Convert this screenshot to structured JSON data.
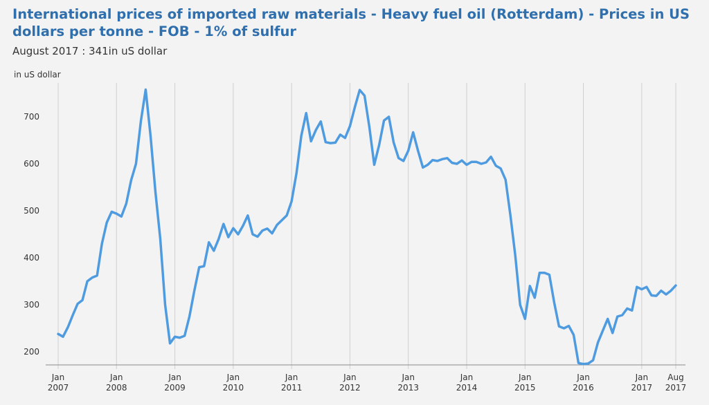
{
  "header": {
    "title": "International prices of imported raw materials - Heavy fuel oil (Rotterdam) - Prices in US dollars per tonne - FOB - 1% of sulfur",
    "subtitle": "August 2017 : 341in uS dollar",
    "unit_label": "in uS dollar"
  },
  "colors": {
    "line": "#4f9be0",
    "grid": "#cfcfcf",
    "title": "#2f6fad"
  },
  "chart_data": {
    "type": "line",
    "title": "International prices of imported raw materials - Heavy fuel oil (Rotterdam) - Prices in US dollars per tonne - FOB - 1% of sulfur",
    "ylabel": "in uS dollar",
    "xlabel": "",
    "ylim": [
      180,
      780
    ],
    "xlim": [
      "2007-01",
      "2017-08"
    ],
    "grid": "vertical",
    "y_ticks": [
      200,
      300,
      400,
      500,
      600,
      700
    ],
    "x_ticks": [
      {
        "date": "2007-01",
        "line1": "Jan",
        "line2": "2007"
      },
      {
        "date": "2008-01",
        "line1": "Jan",
        "line2": "2008"
      },
      {
        "date": "2009-01",
        "line1": "Jan",
        "line2": "2009"
      },
      {
        "date": "2010-01",
        "line1": "Jan",
        "line2": "2010"
      },
      {
        "date": "2011-01",
        "line1": "Jan",
        "line2": "2011"
      },
      {
        "date": "2012-01",
        "line1": "Jan",
        "line2": "2012"
      },
      {
        "date": "2013-01",
        "line1": "Jan",
        "line2": "2013"
      },
      {
        "date": "2014-01",
        "line1": "Jan",
        "line2": "2014"
      },
      {
        "date": "2015-01",
        "line1": "Jan",
        "line2": "2015"
      },
      {
        "date": "2016-01",
        "line1": "Jan",
        "line2": "2016"
      },
      {
        "date": "2017-01",
        "line1": "Jan",
        "line2": "2017"
      },
      {
        "date": "2017-08",
        "line1": "Aug",
        "line2": "2017"
      }
    ],
    "series": [
      {
        "points": [
          [
            "2007-01",
            238
          ],
          [
            "2007-02",
            232
          ],
          [
            "2007-03",
            252
          ],
          [
            "2007-04",
            278
          ],
          [
            "2007-05",
            302
          ],
          [
            "2007-06",
            310
          ],
          [
            "2007-07",
            350
          ],
          [
            "2007-08",
            358
          ],
          [
            "2007-09",
            362
          ],
          [
            "2007-10",
            430
          ],
          [
            "2007-11",
            475
          ],
          [
            "2007-12",
            498
          ],
          [
            "2008-01",
            494
          ],
          [
            "2008-02",
            488
          ],
          [
            "2008-03",
            515
          ],
          [
            "2008-04",
            565
          ],
          [
            "2008-05",
            600
          ],
          [
            "2008-06",
            690
          ],
          [
            "2008-07",
            758
          ],
          [
            "2008-08",
            660
          ],
          [
            "2008-09",
            540
          ],
          [
            "2008-10",
            440
          ],
          [
            "2008-11",
            300
          ],
          [
            "2008-12",
            218
          ],
          [
            "2009-01",
            232
          ],
          [
            "2009-02",
            230
          ],
          [
            "2009-03",
            234
          ],
          [
            "2009-04",
            275
          ],
          [
            "2009-05",
            330
          ],
          [
            "2009-06",
            380
          ],
          [
            "2009-07",
            382
          ],
          [
            "2009-08",
            433
          ],
          [
            "2009-09",
            415
          ],
          [
            "2009-10",
            440
          ],
          [
            "2009-11",
            472
          ],
          [
            "2009-12",
            444
          ],
          [
            "2010-01",
            463
          ],
          [
            "2010-02",
            450
          ],
          [
            "2010-03",
            468
          ],
          [
            "2010-04",
            490
          ],
          [
            "2010-05",
            450
          ],
          [
            "2010-06",
            445
          ],
          [
            "2010-07",
            458
          ],
          [
            "2010-08",
            462
          ],
          [
            "2010-09",
            452
          ],
          [
            "2010-10",
            470
          ],
          [
            "2010-11",
            480
          ],
          [
            "2010-12",
            490
          ],
          [
            "2011-01",
            520
          ],
          [
            "2011-02",
            580
          ],
          [
            "2011-03",
            660
          ],
          [
            "2011-04",
            708
          ],
          [
            "2011-05",
            648
          ],
          [
            "2011-06",
            672
          ],
          [
            "2011-07",
            690
          ],
          [
            "2011-08",
            646
          ],
          [
            "2011-09",
            644
          ],
          [
            "2011-10",
            645
          ],
          [
            "2011-11",
            662
          ],
          [
            "2011-12",
            655
          ],
          [
            "2012-01",
            680
          ],
          [
            "2012-02",
            720
          ],
          [
            "2012-03",
            757
          ],
          [
            "2012-04",
            745
          ],
          [
            "2012-05",
            678
          ],
          [
            "2012-06",
            598
          ],
          [
            "2012-07",
            640
          ],
          [
            "2012-08",
            692
          ],
          [
            "2012-09",
            700
          ],
          [
            "2012-10",
            645
          ],
          [
            "2012-11",
            612
          ],
          [
            "2012-12",
            606
          ],
          [
            "2013-01",
            628
          ],
          [
            "2013-02",
            667
          ],
          [
            "2013-03",
            628
          ],
          [
            "2013-04",
            592
          ],
          [
            "2013-05",
            598
          ],
          [
            "2013-06",
            608
          ],
          [
            "2013-07",
            606
          ],
          [
            "2013-08",
            610
          ],
          [
            "2013-09",
            612
          ],
          [
            "2013-10",
            602
          ],
          [
            "2013-11",
            600
          ],
          [
            "2013-12",
            607
          ],
          [
            "2014-01",
            598
          ],
          [
            "2014-02",
            604
          ],
          [
            "2014-03",
            604
          ],
          [
            "2014-04",
            600
          ],
          [
            "2014-05",
            603
          ],
          [
            "2014-06",
            615
          ],
          [
            "2014-07",
            596
          ],
          [
            "2014-08",
            590
          ],
          [
            "2014-09",
            566
          ],
          [
            "2014-10",
            490
          ],
          [
            "2014-11",
            405
          ],
          [
            "2014-12",
            300
          ],
          [
            "2015-01",
            270
          ],
          [
            "2015-02",
            340
          ],
          [
            "2015-03",
            315
          ],
          [
            "2015-04",
            368
          ],
          [
            "2015-05",
            368
          ],
          [
            "2015-06",
            364
          ],
          [
            "2015-07",
            305
          ],
          [
            "2015-08",
            254
          ],
          [
            "2015-09",
            250
          ],
          [
            "2015-10",
            255
          ],
          [
            "2015-11",
            236
          ],
          [
            "2015-12",
            176
          ],
          [
            "2016-01",
            174
          ],
          [
            "2016-02",
            175
          ],
          [
            "2016-03",
            182
          ],
          [
            "2016-04",
            220
          ],
          [
            "2016-05",
            245
          ],
          [
            "2016-06",
            270
          ],
          [
            "2016-07",
            240
          ],
          [
            "2016-08",
            275
          ],
          [
            "2016-09",
            278
          ],
          [
            "2016-10",
            292
          ],
          [
            "2016-11",
            288
          ],
          [
            "2016-12",
            338
          ],
          [
            "2017-01",
            333
          ],
          [
            "2017-02",
            338
          ],
          [
            "2017-03",
            320
          ],
          [
            "2017-04",
            319
          ],
          [
            "2017-05",
            330
          ],
          [
            "2017-06",
            322
          ],
          [
            "2017-07",
            330
          ],
          [
            "2017-08",
            341
          ]
        ]
      }
    ]
  }
}
